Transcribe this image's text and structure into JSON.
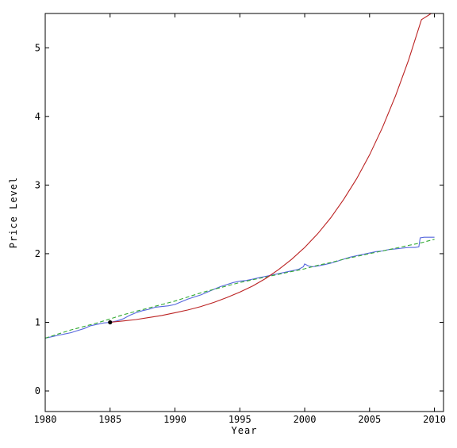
{
  "chart_data": {
    "type": "line",
    "title": "",
    "xlabel": "Year",
    "ylabel": "Price Level",
    "xlim": [
      1980,
      2010.7
    ],
    "ylim": [
      -0.3,
      5.5
    ],
    "x_ticks": [
      1980,
      1985,
      1990,
      1995,
      2000,
      2005,
      2010
    ],
    "y_ticks": [
      0,
      1,
      2,
      3,
      4,
      5
    ],
    "grid": false,
    "legend": "none",
    "series": [
      {
        "style": "solid",
        "color": "#5566dd",
        "x": [
          1980.0,
          1980.5,
          1981.0,
          1981.5,
          1982.0,
          1982.5,
          1983.0,
          1983.5,
          1984.0,
          1984.5,
          1985.0,
          1985.5,
          1986.0,
          1986.5,
          1987.0,
          1987.5,
          1988.0,
          1988.5,
          1989.0,
          1989.5,
          1990.0,
          1990.5,
          1991.0,
          1991.5,
          1992.0,
          1992.5,
          1993.0,
          1993.5,
          1994.0,
          1994.5,
          1995.0,
          1995.5,
          1996.0,
          1996.5,
          1997.0,
          1997.5,
          1998.0,
          1998.5,
          1999.0,
          1999.5,
          1999.9,
          2000.0,
          2000.3,
          2000.6,
          2001.0,
          2001.5,
          2002.0,
          2002.5,
          2003.0,
          2003.5,
          2004.0,
          2004.5,
          2005.0,
          2005.5,
          2006.0,
          2006.5,
          2007.0,
          2007.5,
          2008.0,
          2008.5,
          2008.8,
          2008.9,
          2009.2,
          2009.5,
          2010.0
        ],
        "y": [
          0.77,
          0.79,
          0.81,
          0.83,
          0.85,
          0.88,
          0.91,
          0.95,
          0.97,
          0.99,
          1.0,
          1.02,
          1.05,
          1.1,
          1.14,
          1.17,
          1.19,
          1.22,
          1.23,
          1.24,
          1.26,
          1.3,
          1.34,
          1.37,
          1.4,
          1.44,
          1.48,
          1.52,
          1.55,
          1.58,
          1.6,
          1.61,
          1.63,
          1.65,
          1.67,
          1.69,
          1.71,
          1.73,
          1.75,
          1.77,
          1.81,
          1.85,
          1.82,
          1.81,
          1.82,
          1.84,
          1.86,
          1.89,
          1.92,
          1.95,
          1.97,
          1.99,
          2.01,
          2.03,
          2.04,
          2.06,
          2.07,
          2.08,
          2.09,
          2.09,
          2.1,
          2.23,
          2.24,
          2.24,
          2.24
        ]
      },
      {
        "style": "dashed",
        "color": "#33aa33",
        "x": [
          1980.0,
          1981.0,
          1982.0,
          1983.0,
          1984.0,
          1985.0,
          1986.0,
          1987.0,
          1988.0,
          1989.0,
          1990.0,
          1991.0,
          1992.0,
          1993.0,
          1994.0,
          1995.0,
          1996.0,
          1997.0,
          1998.0,
          1999.0,
          2000.0,
          2001.0,
          2002.0,
          2003.0,
          2004.0,
          2005.0,
          2006.0,
          2007.0,
          2008.0,
          2009.0,
          2010.0
        ],
        "y": [
          0.77,
          0.83,
          0.89,
          0.94,
          0.99,
          1.05,
          1.11,
          1.16,
          1.21,
          1.26,
          1.31,
          1.37,
          1.43,
          1.48,
          1.53,
          1.58,
          1.62,
          1.66,
          1.7,
          1.74,
          1.78,
          1.83,
          1.87,
          1.92,
          1.96,
          2.0,
          2.04,
          2.08,
          2.12,
          2.16,
          2.21
        ]
      },
      {
        "style": "solid",
        "color": "#bb2222",
        "x": [
          1985.0,
          1986.0,
          1987.0,
          1988.0,
          1989.0,
          1990.0,
          1991.0,
          1992.0,
          1993.0,
          1994.0,
          1995.0,
          1996.0,
          1997.0,
          1998.0,
          1999.0,
          2000.0,
          2001.0,
          2002.0,
          2003.0,
          2004.0,
          2005.0,
          2006.0,
          2007.0,
          2008.0,
          2009.0,
          2009.75
        ],
        "y": [
          1.0,
          1.02,
          1.04,
          1.07,
          1.1,
          1.14,
          1.18,
          1.23,
          1.29,
          1.36,
          1.44,
          1.53,
          1.64,
          1.77,
          1.92,
          2.09,
          2.29,
          2.52,
          2.79,
          3.09,
          3.44,
          3.84,
          4.3,
          4.82,
          5.41,
          5.5
        ]
      }
    ],
    "points": [
      {
        "x": 1985,
        "y": 1.0,
        "color": "#000000"
      }
    ]
  }
}
